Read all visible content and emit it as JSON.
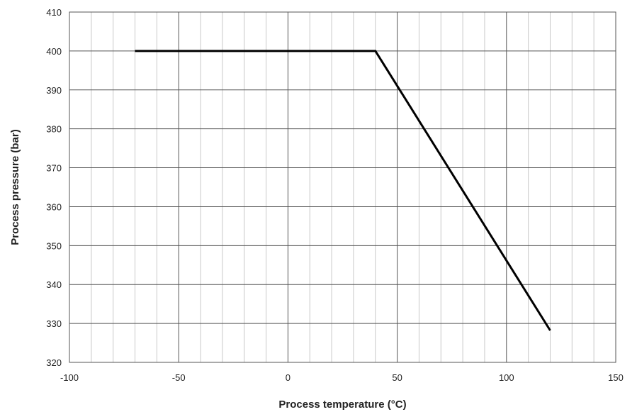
{
  "chart_data": {
    "type": "line",
    "xlabel": "Process temperature (°C)",
    "ylabel": "Process pressure (bar)",
    "xlim": [
      -100,
      150
    ],
    "ylim": [
      320,
      410
    ],
    "x_ticks": [
      -100,
      -50,
      0,
      50,
      100,
      150
    ],
    "y_ticks": [
      320,
      330,
      340,
      350,
      360,
      370,
      380,
      390,
      400,
      410
    ],
    "x_tick_labels": [
      "-100",
      "-50",
      "0",
      "50",
      "100",
      "150"
    ],
    "y_tick_labels": [
      "320",
      "330",
      "340",
      "350",
      "360",
      "370",
      "380",
      "390",
      "400",
      "410"
    ],
    "grid": true,
    "x_minor_step": 10,
    "series": [
      {
        "points": [
          [
            -70,
            400
          ],
          [
            40,
            400
          ],
          [
            120,
            328.2
          ]
        ],
        "color": "#000000"
      }
    ]
  }
}
